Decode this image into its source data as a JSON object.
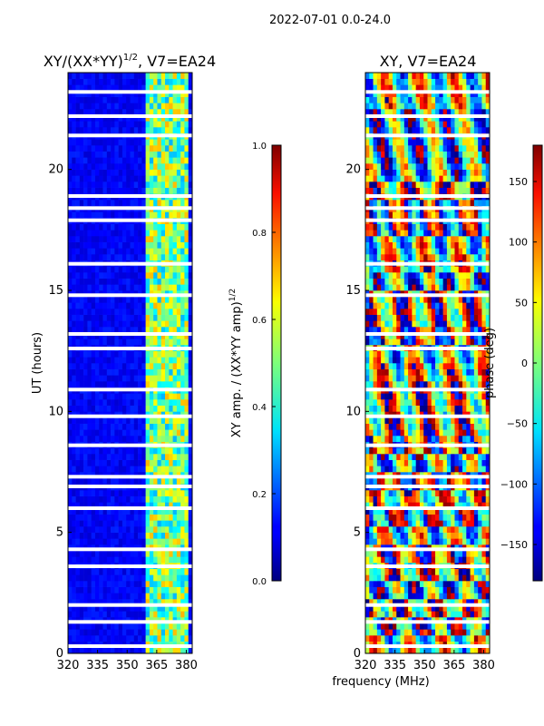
{
  "figure": {
    "suptitle": "2022-07-01 0.0-24.0",
    "xlabel": "frequency (MHz)"
  },
  "chart_data": [
    {
      "type": "heatmap",
      "title": "XY/(XX*YY)",
      "title_sup": "1/2",
      "title_tail": ", V7=EA24",
      "ylabel": "UT (hours)",
      "xlim": [
        320,
        383
      ],
      "ylim": [
        0,
        24
      ],
      "xticks": [
        320,
        335,
        350,
        365,
        380
      ],
      "yticks": [
        0,
        5,
        10,
        15,
        20
      ],
      "active_band_MHz": [
        360,
        382
      ],
      "colorbar": {
        "label": "XY amp. / (XX*YY amp)",
        "label_sup": "1/2",
        "range": [
          0.0,
          1.0
        ],
        "ticks": [
          "0.0",
          "0.2",
          "0.4",
          "0.6",
          "0.8",
          "1.0"
        ]
      }
    },
    {
      "type": "heatmap",
      "title": "XY, V7=EA24",
      "ylabel": "",
      "xlim": [
        320,
        383
      ],
      "ylim": [
        0,
        24
      ],
      "xticks": [
        320,
        335,
        350,
        365,
        380
      ],
      "yticks": [
        0,
        5,
        10,
        15,
        20
      ],
      "colorbar": {
        "label": "phase (deg)",
        "range": [
          -180,
          180
        ],
        "ticks": [
          "−150",
          "−100",
          "−50",
          "0",
          "50",
          "100",
          "150"
        ]
      }
    }
  ]
}
